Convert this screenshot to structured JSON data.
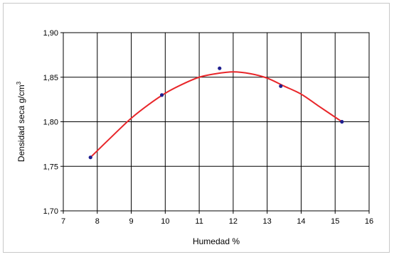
{
  "chart_data": {
    "type": "scatter",
    "title": "",
    "xlabel": "Humedad %",
    "ylabel": "Densidad seca g/cm",
    "ylabel_sup": "3",
    "xlim": [
      7,
      16
    ],
    "ylim": [
      1.7,
      1.9
    ],
    "xticks": [
      7,
      8,
      9,
      10,
      11,
      12,
      13,
      14,
      15,
      16
    ],
    "xtick_labels": [
      "7",
      "8",
      "9",
      "10",
      "11",
      "12",
      "13",
      "14",
      "15",
      "16"
    ],
    "yticks": [
      1.7,
      1.75,
      1.8,
      1.85,
      1.9
    ],
    "ytick_labels": [
      "1,70",
      "1,75",
      "1,80",
      "1,85",
      "1,90"
    ],
    "grid": true,
    "legend": "none",
    "series": [
      {
        "type": "scatter",
        "color": "#1f1f8f",
        "points": [
          {
            "x": 7.8,
            "y": 1.76
          },
          {
            "x": 9.9,
            "y": 1.83
          },
          {
            "x": 11.6,
            "y": 1.86
          },
          {
            "x": 13.4,
            "y": 1.84
          },
          {
            "x": 15.2,
            "y": 1.8
          }
        ]
      },
      {
        "type": "line",
        "color": "#e8262a",
        "smooth": true,
        "points": [
          {
            "x": 7.8,
            "y": 1.76
          },
          {
            "x": 8.5,
            "y": 1.786
          },
          {
            "x": 9.0,
            "y": 1.804
          },
          {
            "x": 9.5,
            "y": 1.819
          },
          {
            "x": 10.0,
            "y": 1.832
          },
          {
            "x": 10.5,
            "y": 1.842
          },
          {
            "x": 11.0,
            "y": 1.85
          },
          {
            "x": 11.5,
            "y": 1.854
          },
          {
            "x": 12.0,
            "y": 1.856
          },
          {
            "x": 12.5,
            "y": 1.854
          },
          {
            "x": 13.0,
            "y": 1.849
          },
          {
            "x": 13.5,
            "y": 1.84
          },
          {
            "x": 14.0,
            "y": 1.831
          },
          {
            "x": 14.5,
            "y": 1.818
          },
          {
            "x": 15.2,
            "y": 1.8
          }
        ]
      }
    ]
  }
}
